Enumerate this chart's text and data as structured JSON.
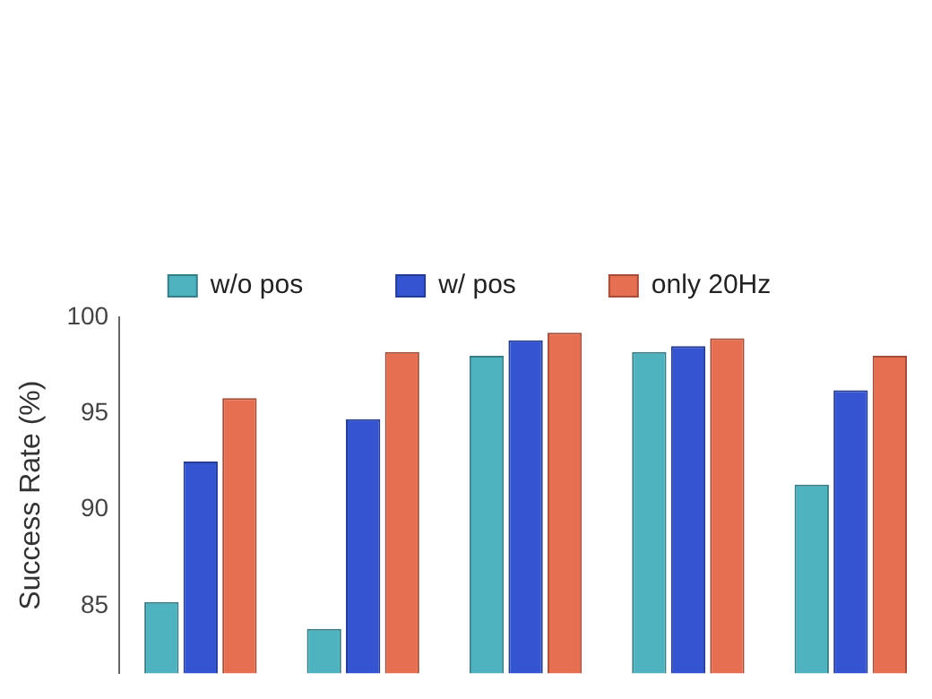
{
  "chart_data": {
    "type": "bar",
    "ylabel": "Success Rate (%)",
    "categories": [
      null,
      null,
      null,
      null,
      null
    ],
    "series": [
      {
        "name": "w/o pos",
        "color": "#4fb3bf",
        "values": [
          85.2,
          83.8,
          98.0,
          98.2,
          91.3
        ]
      },
      {
        "name": "w/ pos",
        "color": "#3454d1",
        "values": [
          92.5,
          94.7,
          98.8,
          98.5,
          96.2
        ]
      },
      {
        "name": "only 20Hz",
        "color": "#e76f51",
        "values": [
          95.8,
          98.2,
          99.2,
          98.9,
          98.0
        ]
      }
    ],
    "ylim": [
      81.5,
      100
    ],
    "yticks": [
      85,
      90,
      95,
      100
    ],
    "grid": false,
    "legend": "top",
    "tick_labels": "y"
  }
}
